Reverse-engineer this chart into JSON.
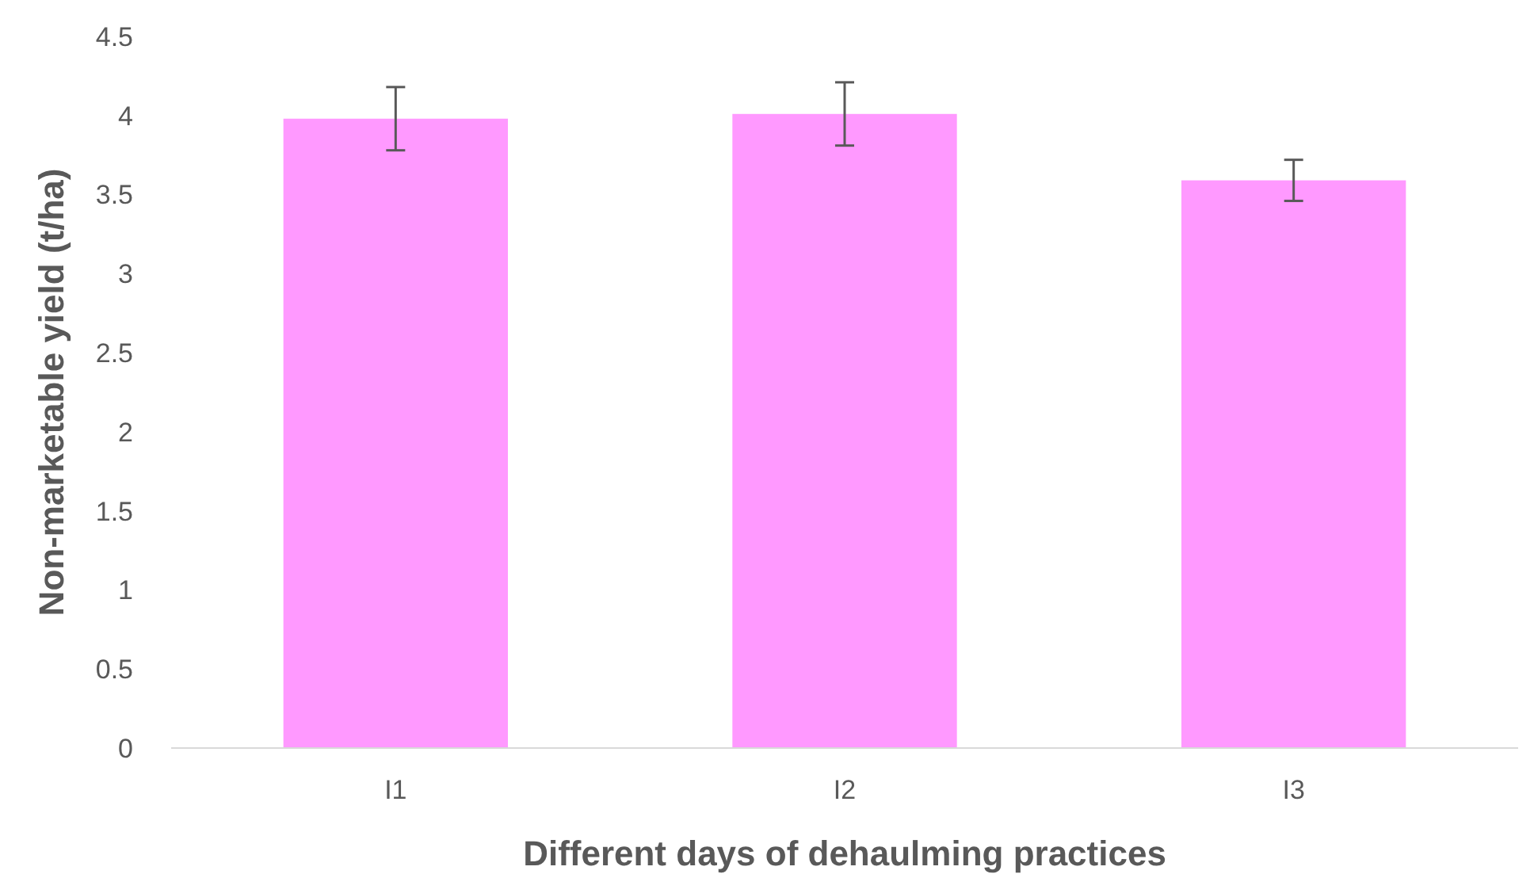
{
  "chart_data": {
    "type": "bar",
    "xlabel": "Different days of dehaulming practices",
    "ylabel": "Non-marketable yield (t/ha)",
    "categories": [
      "I1",
      "I2",
      "I3"
    ],
    "values": [
      3.98,
      4.01,
      3.59
    ],
    "errors": [
      0.2,
      0.2,
      0.13
    ],
    "color": "#ff99ff",
    "ylim": [
      0,
      4.5
    ],
    "yticks": [
      0,
      0.5,
      1,
      1.5,
      2,
      2.5,
      3,
      3.5,
      4,
      4.5
    ],
    "grid": false
  }
}
